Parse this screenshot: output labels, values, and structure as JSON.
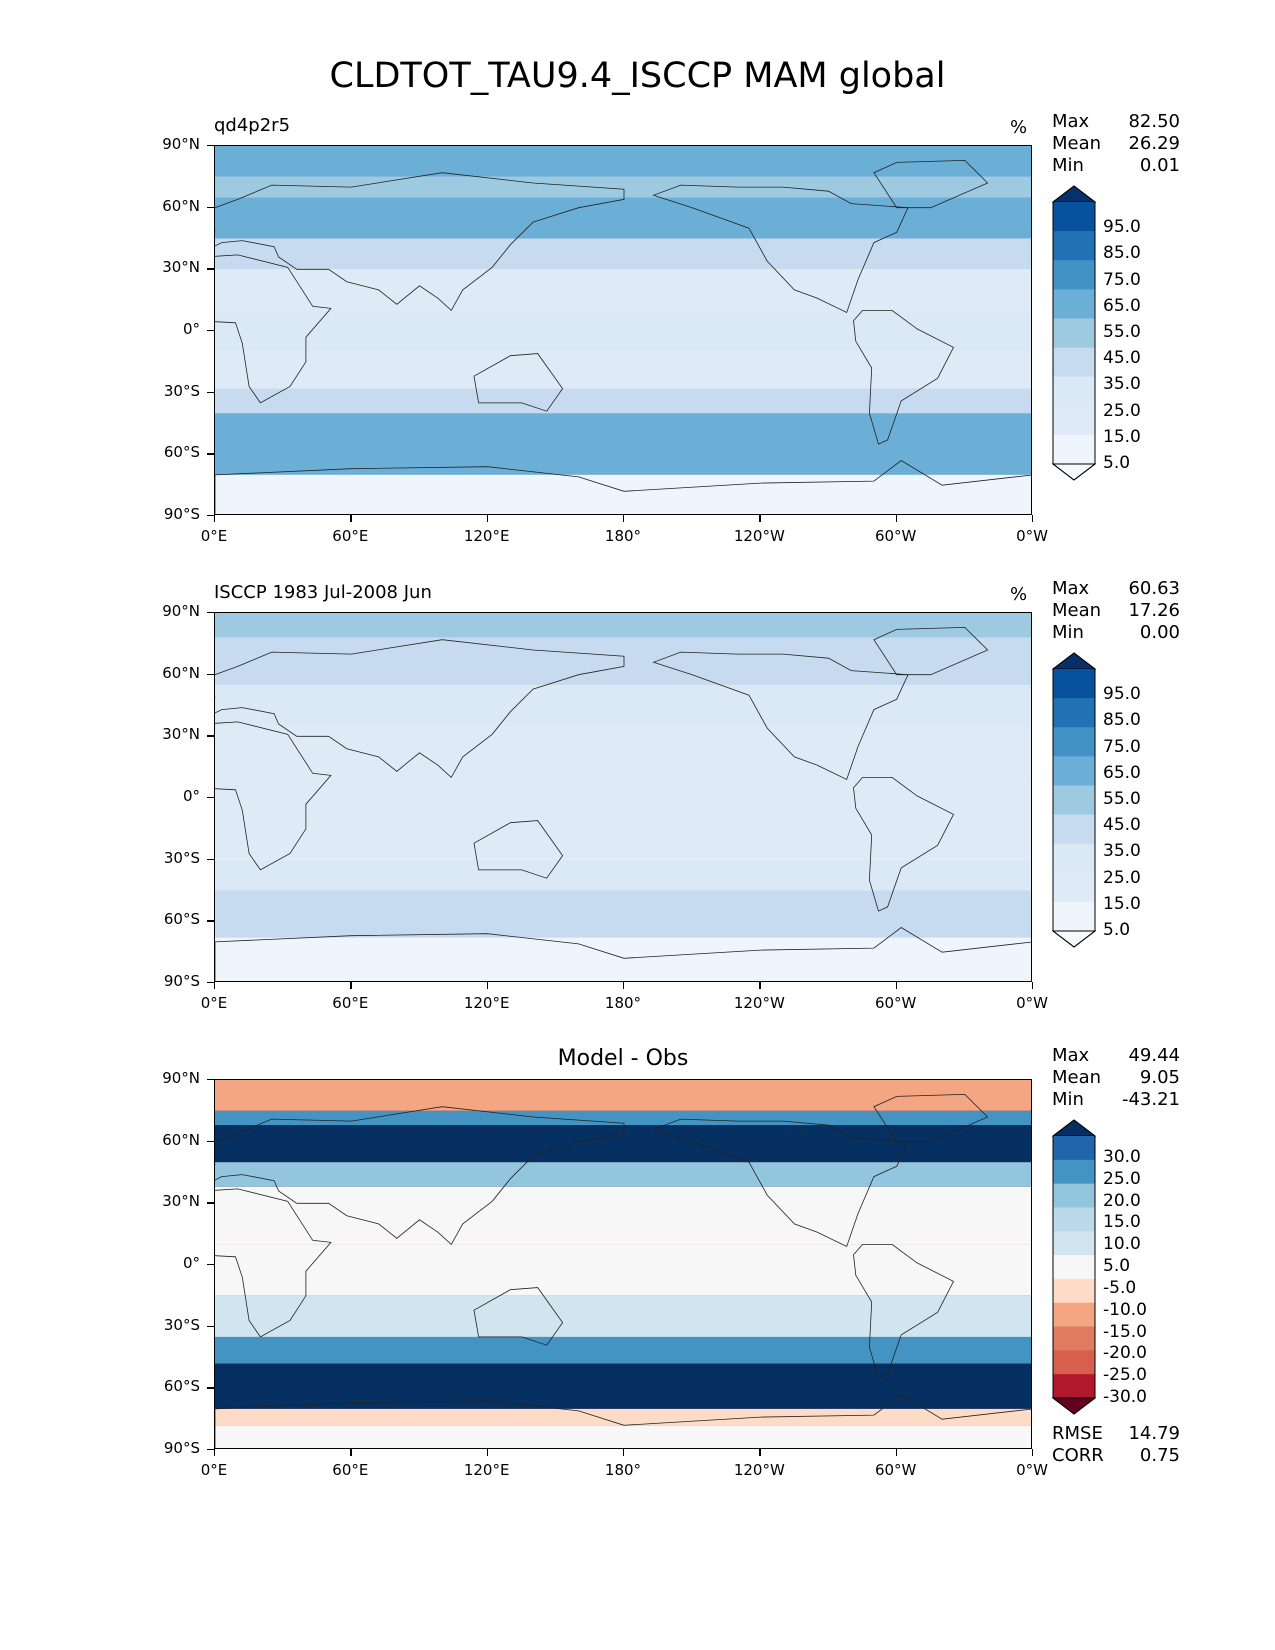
{
  "title": "CLDTOT_TAU9.4_ISCCP MAM global",
  "chart_data": [
    {
      "type": "heatmap",
      "name": "model",
      "subtitle": "qd4p2r5",
      "units": "%",
      "stats": [
        {
          "label": "Max",
          "value": "82.50"
        },
        {
          "label": "Mean",
          "value": "26.29"
        },
        {
          "label": "Min",
          "value": "0.01"
        }
      ],
      "xticks": [
        "0°E",
        "60°E",
        "120°E",
        "180°",
        "120°W",
        "60°W",
        "0°W"
      ],
      "yticks": [
        "90°N",
        "60°N",
        "30°N",
        "0°",
        "30°S",
        "60°S",
        "90°S"
      ],
      "levels": [
        "95.0",
        "85.0",
        "75.0",
        "65.0",
        "55.0",
        "45.0",
        "35.0",
        "25.0",
        "15.0",
        "5.0"
      ],
      "colorbar": [
        "#08306b",
        "#08519c",
        "#2171b5",
        "#4292c6",
        "#6baed6",
        "#9ecae1",
        "#c6dbef",
        "#dbe9f6",
        "#deebf7",
        "#eef5fc",
        "#f7fbff"
      ],
      "lat_bands": [
        {
          "lat_from": 90,
          "lat_to": 75,
          "level": 4
        },
        {
          "lat_from": 75,
          "lat_to": 65,
          "level": 5
        },
        {
          "lat_from": 65,
          "lat_to": 45,
          "level": 4
        },
        {
          "lat_from": 45,
          "lat_to": 30,
          "level": 6
        },
        {
          "lat_from": 30,
          "lat_to": 10,
          "level": 8
        },
        {
          "lat_from": 10,
          "lat_to": -10,
          "level": 7
        },
        {
          "lat_from": -10,
          "lat_to": -28,
          "level": 8
        },
        {
          "lat_from": -28,
          "lat_to": -40,
          "level": 6
        },
        {
          "lat_from": -40,
          "lat_to": -70,
          "level": 4
        },
        {
          "lat_from": -70,
          "lat_to": -90,
          "level": 9
        }
      ]
    },
    {
      "type": "heatmap",
      "name": "obs",
      "subtitle": "ISCCP 1983 Jul-2008 Jun",
      "units": "%",
      "stats": [
        {
          "label": "Max",
          "value": "60.63"
        },
        {
          "label": "Mean",
          "value": "17.26"
        },
        {
          "label": "Min",
          "value": "0.00"
        }
      ],
      "xticks": [
        "0°E",
        "60°E",
        "120°E",
        "180°",
        "120°W",
        "60°W",
        "0°W"
      ],
      "yticks": [
        "90°N",
        "60°N",
        "30°N",
        "0°",
        "30°S",
        "60°S",
        "90°S"
      ],
      "levels": [
        "95.0",
        "85.0",
        "75.0",
        "65.0",
        "55.0",
        "45.0",
        "35.0",
        "25.0",
        "15.0",
        "5.0"
      ],
      "colorbar": [
        "#08306b",
        "#08519c",
        "#2171b5",
        "#4292c6",
        "#6baed6",
        "#9ecae1",
        "#c6dbef",
        "#dbe9f6",
        "#deebf7",
        "#eef5fc",
        "#f7fbff"
      ],
      "lat_bands": [
        {
          "lat_from": 90,
          "lat_to": 78,
          "level": 5
        },
        {
          "lat_from": 78,
          "lat_to": 55,
          "level": 6
        },
        {
          "lat_from": 55,
          "lat_to": 35,
          "level": 7
        },
        {
          "lat_from": 35,
          "lat_to": 10,
          "level": 8
        },
        {
          "lat_from": 10,
          "lat_to": -10,
          "level": 8
        },
        {
          "lat_from": -10,
          "lat_to": -30,
          "level": 8
        },
        {
          "lat_from": -30,
          "lat_to": -45,
          "level": 7
        },
        {
          "lat_from": -45,
          "lat_to": -68,
          "level": 6
        },
        {
          "lat_from": -68,
          "lat_to": -90,
          "level": 9
        }
      ]
    },
    {
      "type": "heatmap",
      "name": "diff",
      "subtitle": "Model - Obs",
      "units": "",
      "stats": [
        {
          "label": "Max",
          "value": "49.44"
        },
        {
          "label": "Mean",
          "value": "9.05"
        },
        {
          "label": "Min",
          "value": "-43.21"
        }
      ],
      "xticks": [
        "0°E",
        "60°E",
        "120°E",
        "180°",
        "120°W",
        "60°W",
        "0°W"
      ],
      "yticks": [
        "90°N",
        "60°N",
        "30°N",
        "0°",
        "30°S",
        "60°S",
        "90°S"
      ],
      "levels": [
        "30.0",
        "25.0",
        "20.0",
        "15.0",
        "10.0",
        "5.0",
        "-5.0",
        "-10.0",
        "-15.0",
        "-20.0",
        "-25.0",
        "-30.0"
      ],
      "colorbar": [
        "#053061",
        "#2166ac",
        "#4393c3",
        "#92c5de",
        "#bcd8eb",
        "#d1e5f0",
        "#f7f7f7",
        "#fddbc7",
        "#f4a582",
        "#e07b5f",
        "#d6604d",
        "#b2182b",
        "#67001f"
      ],
      "lat_bands": [
        {
          "lat_from": 90,
          "lat_to": 75,
          "level": 8
        },
        {
          "lat_from": 75,
          "lat_to": 68,
          "level": 2
        },
        {
          "lat_from": 68,
          "lat_to": 50,
          "level": 0
        },
        {
          "lat_from": 50,
          "lat_to": 38,
          "level": 3
        },
        {
          "lat_from": 38,
          "lat_to": 10,
          "level": 6
        },
        {
          "lat_from": 10,
          "lat_to": -15,
          "level": 6
        },
        {
          "lat_from": -15,
          "lat_to": -35,
          "level": 5
        },
        {
          "lat_from": -35,
          "lat_to": -48,
          "level": 2
        },
        {
          "lat_from": -48,
          "lat_to": -70,
          "level": 0
        },
        {
          "lat_from": -70,
          "lat_to": -78,
          "level": 7
        },
        {
          "lat_from": -78,
          "lat_to": -90,
          "level": 6
        }
      ],
      "extra_stats": [
        {
          "label": "RMSE",
          "value": "14.79"
        },
        {
          "label": "CORR",
          "value": "0.75"
        }
      ]
    }
  ]
}
